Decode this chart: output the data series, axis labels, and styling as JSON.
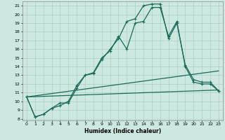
{
  "xlabel": "Humidex (Indice chaleur)",
  "bg_color": "#cce8e0",
  "grid_color": "#aacfc8",
  "line_color": "#1a6b5a",
  "xlim": [
    -0.5,
    23.5
  ],
  "ylim": [
    7.8,
    21.5
  ],
  "xticks": [
    0,
    1,
    2,
    3,
    4,
    5,
    6,
    7,
    8,
    9,
    10,
    11,
    12,
    13,
    14,
    15,
    16,
    17,
    18,
    19,
    20,
    21,
    22,
    23
  ],
  "yticks": [
    8,
    9,
    10,
    11,
    12,
    13,
    14,
    15,
    16,
    17,
    18,
    19,
    20,
    21
  ],
  "curve1_x": [
    0,
    1,
    2,
    3,
    4,
    5,
    6,
    7,
    8,
    9,
    10,
    11,
    12,
    13,
    14,
    15,
    16,
    17,
    18,
    19,
    20,
    21,
    22,
    23
  ],
  "curve1_y": [
    10.5,
    8.2,
    8.5,
    9.2,
    9.5,
    10.0,
    11.8,
    13.0,
    13.2,
    14.8,
    16.0,
    17.2,
    19.2,
    19.5,
    21.0,
    21.2,
    21.2,
    17.2,
    19.0,
    14.2,
    12.5,
    12.2,
    12.2,
    11.2
  ],
  "curve2_x": [
    0,
    1,
    2,
    3,
    4,
    5,
    6,
    7,
    8,
    9,
    10,
    11,
    12,
    13,
    14,
    15,
    16,
    17,
    18,
    19,
    20,
    21,
    22,
    23
  ],
  "curve2_y": [
    10.5,
    8.2,
    8.5,
    9.2,
    9.8,
    9.8,
    11.5,
    13.0,
    13.3,
    15.0,
    15.8,
    17.5,
    16.0,
    19.0,
    19.2,
    20.8,
    20.8,
    17.5,
    19.2,
    14.0,
    12.2,
    12.0,
    12.0,
    11.2
  ],
  "line3_x": [
    0,
    23
  ],
  "line3_y": [
    10.5,
    13.5
  ],
  "line4_x": [
    0,
    23
  ],
  "line4_y": [
    10.5,
    11.3
  ]
}
